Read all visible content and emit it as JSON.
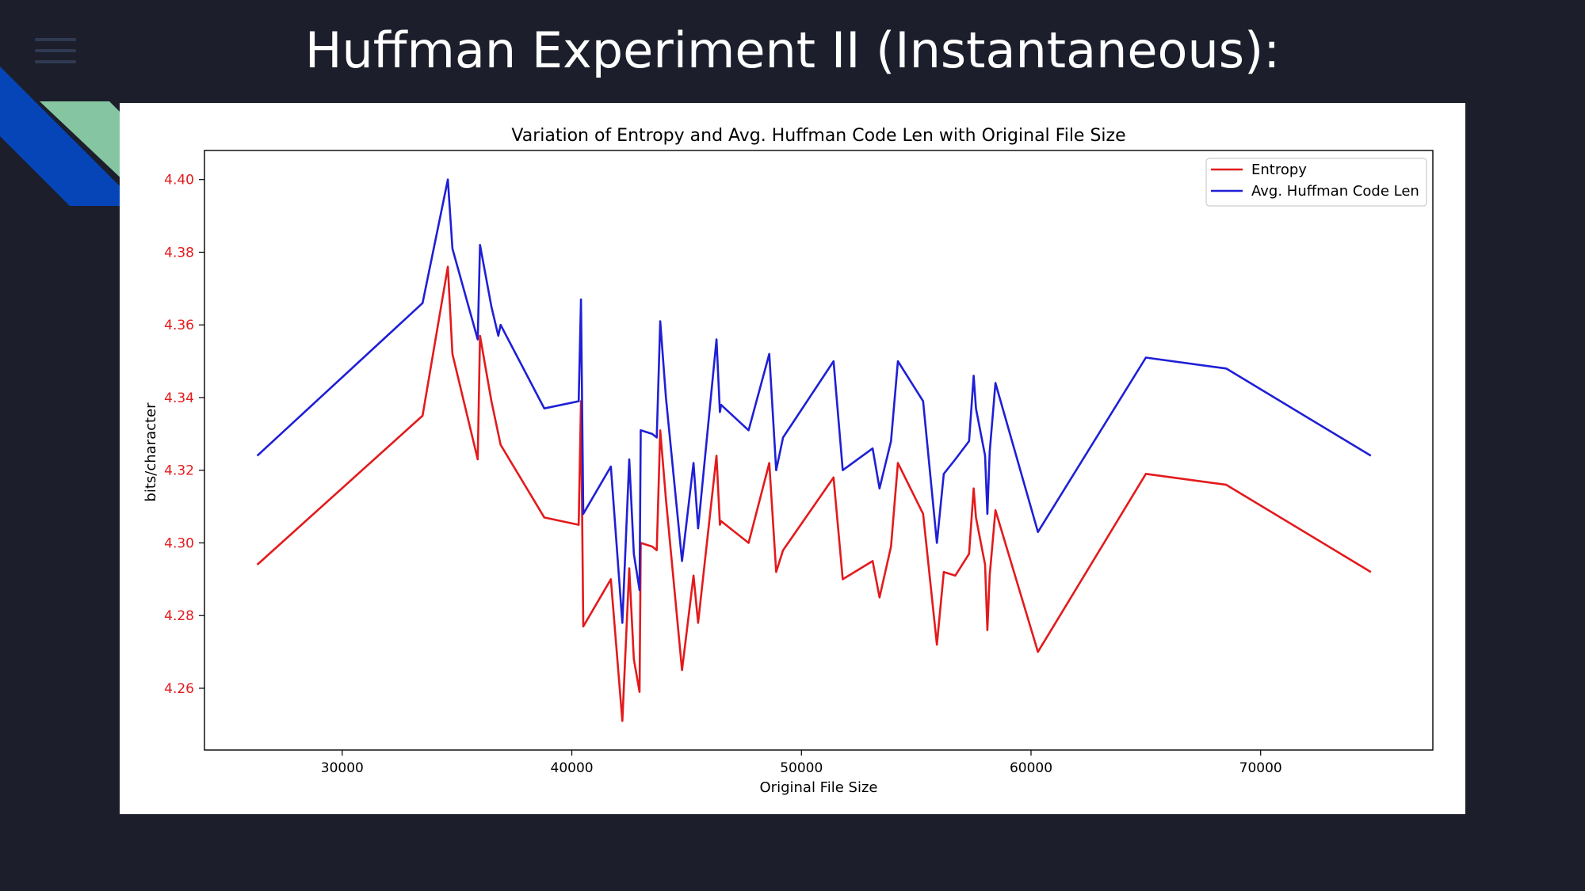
{
  "slide": {
    "title": "Huffman Experiment II (Instantaneous):",
    "colors": {
      "background": "#1c1f2b",
      "accent_blue": "#0645b8",
      "accent_green": "#86c5a1"
    },
    "menu_icon": "hamburger-menu-icon"
  },
  "chart_data": {
    "type": "line",
    "title": "Variation of Entropy and Avg. Huffman Code Len with Original File Size",
    "xlabel": "Original File Size",
    "ylabel": "bits/character",
    "xlim": [
      24000,
      77500
    ],
    "ylim": [
      4.243,
      4.408
    ],
    "xticks": [
      30000,
      40000,
      50000,
      60000,
      70000
    ],
    "xtick_labels": [
      "30000",
      "40000",
      "50000",
      "60000",
      "70000"
    ],
    "yticks": [
      4.26,
      4.28,
      4.3,
      4.32,
      4.34,
      4.36,
      4.38,
      4.4
    ],
    "ytick_labels": [
      "4.26",
      "4.28",
      "4.30",
      "4.32",
      "4.34",
      "4.36",
      "4.38",
      "4.40"
    ],
    "grid": false,
    "legend_position": "top-right",
    "series": [
      {
        "name": "Entropy",
        "color": "#e31a1c",
        "points": [
          [
            26300,
            4.294
          ],
          [
            33500,
            4.335
          ],
          [
            34600,
            4.376
          ],
          [
            34800,
            4.352
          ],
          [
            35900,
            4.323
          ],
          [
            36000,
            4.357
          ],
          [
            36500,
            4.339
          ],
          [
            36800,
            4.33
          ],
          [
            36900,
            4.327
          ],
          [
            38800,
            4.307
          ],
          [
            40300,
            4.305
          ],
          [
            40400,
            4.339
          ],
          [
            40500,
            4.277
          ],
          [
            41700,
            4.29
          ],
          [
            42200,
            4.251
          ],
          [
            42500,
            4.293
          ],
          [
            42700,
            4.268
          ],
          [
            42950,
            4.259
          ],
          [
            43000,
            4.3
          ],
          [
            43500,
            4.299
          ],
          [
            43700,
            4.298
          ],
          [
            43850,
            4.331
          ],
          [
            44100,
            4.312
          ],
          [
            44800,
            4.265
          ],
          [
            45300,
            4.291
          ],
          [
            45500,
            4.278
          ],
          [
            46300,
            4.324
          ],
          [
            46450,
            4.305
          ],
          [
            46500,
            4.306
          ],
          [
            47700,
            4.3
          ],
          [
            48600,
            4.322
          ],
          [
            48900,
            4.292
          ],
          [
            49200,
            4.298
          ],
          [
            51400,
            4.318
          ],
          [
            51800,
            4.29
          ],
          [
            53100,
            4.295
          ],
          [
            53400,
            4.285
          ],
          [
            53900,
            4.299
          ],
          [
            54200,
            4.322
          ],
          [
            55300,
            4.308
          ],
          [
            55900,
            4.272
          ],
          [
            56200,
            4.292
          ],
          [
            56700,
            4.291
          ],
          [
            57300,
            4.297
          ],
          [
            57500,
            4.315
          ],
          [
            57600,
            4.307
          ],
          [
            58000,
            4.294
          ],
          [
            58100,
            4.276
          ],
          [
            58200,
            4.291
          ],
          [
            58450,
            4.309
          ],
          [
            60300,
            4.27
          ],
          [
            65000,
            4.319
          ],
          [
            68500,
            4.316
          ],
          [
            74800,
            4.292
          ]
        ]
      },
      {
        "name": "Avg. Huffman Code Len",
        "color": "#1f1fd6",
        "points": [
          [
            26300,
            4.324
          ],
          [
            33500,
            4.366
          ],
          [
            34600,
            4.4
          ],
          [
            34800,
            4.381
          ],
          [
            35900,
            4.356
          ],
          [
            36000,
            4.382
          ],
          [
            36500,
            4.365
          ],
          [
            36800,
            4.357
          ],
          [
            36900,
            4.36
          ],
          [
            38800,
            4.337
          ],
          [
            40300,
            4.339
          ],
          [
            40400,
            4.367
          ],
          [
            40500,
            4.308
          ],
          [
            41700,
            4.321
          ],
          [
            42200,
            4.278
          ],
          [
            42500,
            4.323
          ],
          [
            42700,
            4.297
          ],
          [
            42950,
            4.287
          ],
          [
            43000,
            4.331
          ],
          [
            43500,
            4.33
          ],
          [
            43700,
            4.329
          ],
          [
            43850,
            4.361
          ],
          [
            44100,
            4.34
          ],
          [
            44800,
            4.295
          ],
          [
            45300,
            4.322
          ],
          [
            45500,
            4.304
          ],
          [
            46300,
            4.356
          ],
          [
            46450,
            4.336
          ],
          [
            46500,
            4.338
          ],
          [
            47700,
            4.331
          ],
          [
            48600,
            4.352
          ],
          [
            48900,
            4.32
          ],
          [
            49200,
            4.329
          ],
          [
            51400,
            4.35
          ],
          [
            51800,
            4.32
          ],
          [
            53100,
            4.326
          ],
          [
            53400,
            4.315
          ],
          [
            53900,
            4.328
          ],
          [
            54200,
            4.35
          ],
          [
            55300,
            4.339
          ],
          [
            55900,
            4.3
          ],
          [
            56200,
            4.319
          ],
          [
            56700,
            4.323
          ],
          [
            57300,
            4.328
          ],
          [
            57500,
            4.346
          ],
          [
            57600,
            4.337
          ],
          [
            58000,
            4.324
          ],
          [
            58100,
            4.308
          ],
          [
            58200,
            4.325
          ],
          [
            58450,
            4.344
          ],
          [
            60300,
            4.303
          ],
          [
            65000,
            4.351
          ],
          [
            68500,
            4.348
          ],
          [
            74800,
            4.324
          ]
        ]
      }
    ]
  }
}
